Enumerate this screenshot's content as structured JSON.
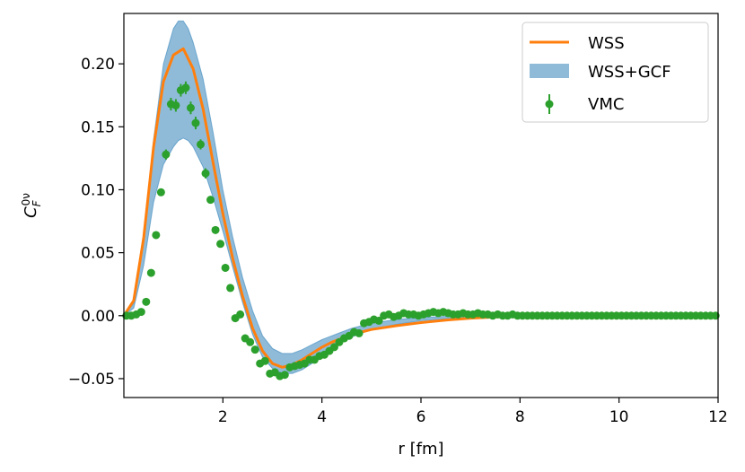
{
  "chart_data": {
    "type": "line",
    "xlabel": "r [fm]",
    "ylabel": "C",
    "ylabel_sub": "F",
    "ylabel_sup": "0ν",
    "xlim": [
      0,
      12
    ],
    "ylim": [
      -0.065,
      0.24
    ],
    "x_ticks": [
      2,
      4,
      6,
      8,
      10,
      12
    ],
    "x_tick_labels": [
      "2",
      "4",
      "6",
      "8",
      "10",
      "12"
    ],
    "y_ticks": [
      -0.05,
      0.0,
      0.05,
      0.1,
      0.15,
      0.2
    ],
    "y_tick_labels": [
      "−0.05",
      "0.00",
      "0.05",
      "0.10",
      "0.15",
      "0.20"
    ],
    "grid": false,
    "legend_position": "top-right",
    "legend": [
      "WSS",
      "WSS+GCF",
      "VMC"
    ],
    "colors": {
      "WSS": "#ff7f0e",
      "WSS+GCF": "#1f77b4",
      "VMC": "#2ca02c"
    },
    "wss": {
      "x": [
        0.0,
        0.2,
        0.4,
        0.6,
        0.8,
        1.0,
        1.2,
        1.4,
        1.6,
        1.8,
        2.0,
        2.2,
        2.4,
        2.6,
        2.8,
        3.0,
        3.2,
        3.4,
        3.6,
        3.8,
        4.0,
        4.2,
        4.4,
        4.6,
        4.8,
        5.0,
        5.5,
        6.0,
        6.5,
        7.0,
        7.5,
        8.0,
        8.5,
        9.0,
        10.0,
        11.0,
        12.0
      ],
      "y": [
        0.0,
        0.012,
        0.062,
        0.134,
        0.186,
        0.207,
        0.212,
        0.196,
        0.164,
        0.122,
        0.081,
        0.045,
        0.015,
        -0.01,
        -0.028,
        -0.038,
        -0.041,
        -0.039,
        -0.035,
        -0.03,
        -0.025,
        -0.021,
        -0.018,
        -0.015,
        -0.013,
        -0.011,
        -0.008,
        -0.0055,
        -0.0035,
        -0.002,
        -0.001,
        -0.0004,
        -0.0001,
        0.0,
        0.0,
        0.0,
        0.0
      ]
    },
    "band": {
      "x": [
        0.0,
        0.2,
        0.4,
        0.6,
        0.8,
        1.0,
        1.1,
        1.2,
        1.3,
        1.4,
        1.6,
        1.8,
        2.0,
        2.2,
        2.4,
        2.6,
        2.8,
        3.0,
        3.2,
        3.4,
        3.6,
        3.8,
        4.0,
        4.2,
        4.4,
        4.6,
        4.8,
        5.0,
        5.5,
        6.0,
        6.5,
        7.0,
        7.5,
        8.0,
        8.5,
        9.0,
        10.0,
        11.0,
        12.0
      ],
      "upper": [
        0.0,
        0.01,
        0.06,
        0.14,
        0.2,
        0.228,
        0.234,
        0.234,
        0.228,
        0.217,
        0.188,
        0.146,
        0.1,
        0.062,
        0.03,
        0.004,
        -0.016,
        -0.026,
        -0.03,
        -0.03,
        -0.027,
        -0.023,
        -0.019,
        -0.016,
        -0.013,
        -0.01,
        -0.008,
        -0.006,
        -0.003,
        -0.0015,
        -0.0005,
        0.0,
        0.0,
        0.0,
        0.0,
        0.0,
        0.0,
        0.0,
        0.0
      ],
      "lower": [
        0.0,
        0.006,
        0.04,
        0.09,
        0.12,
        0.134,
        0.139,
        0.141,
        0.139,
        0.134,
        0.118,
        0.094,
        0.067,
        0.038,
        0.01,
        -0.015,
        -0.033,
        -0.042,
        -0.046,
        -0.046,
        -0.043,
        -0.038,
        -0.032,
        -0.026,
        -0.021,
        -0.017,
        -0.014,
        -0.011,
        -0.007,
        -0.004,
        -0.0025,
        -0.0015,
        -0.001,
        -0.0005,
        0.0,
        0.0,
        0.0,
        0.0,
        0.0
      ]
    },
    "vmc": {
      "x": [
        0.05,
        0.15,
        0.25,
        0.35,
        0.45,
        0.55,
        0.65,
        0.75,
        0.85,
        0.95,
        1.05,
        1.15,
        1.25,
        1.35,
        1.45,
        1.55,
        1.65,
        1.75,
        1.85,
        1.95,
        2.05,
        2.15,
        2.25,
        2.35,
        2.45,
        2.55,
        2.65,
        2.75,
        2.85,
        2.95,
        3.05,
        3.15,
        3.25,
        3.35,
        3.45,
        3.55,
        3.65,
        3.75,
        3.85,
        3.95,
        4.05,
        4.15,
        4.25,
        4.35,
        4.45,
        4.55,
        4.65,
        4.75,
        4.85,
        4.95,
        5.05,
        5.15,
        5.25,
        5.35,
        5.45,
        5.55,
        5.65,
        5.75,
        5.85,
        5.95,
        6.05,
        6.15,
        6.25,
        6.35,
        6.45,
        6.55,
        6.65,
        6.75,
        6.85,
        6.95,
        7.05,
        7.15,
        7.25,
        7.35,
        7.45,
        7.55,
        7.65,
        7.75,
        7.85,
        7.95,
        8.05,
        8.15,
        8.25,
        8.35,
        8.45,
        8.55,
        8.65,
        8.75,
        8.85,
        8.95,
        9.05,
        9.15,
        9.25,
        9.35,
        9.45,
        9.55,
        9.65,
        9.75,
        9.85,
        9.95,
        10.05,
        10.15,
        10.25,
        10.35,
        10.45,
        10.55,
        10.65,
        10.75,
        10.85,
        10.95,
        11.05,
        11.15,
        11.25,
        11.35,
        11.45,
        11.55,
        11.65,
        11.75,
        11.85,
        11.95
      ],
      "y": [
        0.0,
        0.0,
        0.001,
        0.003,
        0.011,
        0.034,
        0.064,
        0.098,
        0.128,
        0.168,
        0.167,
        0.179,
        0.181,
        0.165,
        0.153,
        0.136,
        0.113,
        0.092,
        0.068,
        0.057,
        0.038,
        0.022,
        -0.002,
        0.001,
        -0.018,
        -0.021,
        -0.027,
        -0.038,
        -0.036,
        -0.046,
        -0.045,
        -0.048,
        -0.047,
        -0.041,
        -0.04,
        -0.039,
        -0.038,
        -0.035,
        -0.035,
        -0.032,
        -0.031,
        -0.028,
        -0.025,
        -0.021,
        -0.018,
        -0.016,
        -0.013,
        -0.014,
        -0.006,
        -0.005,
        -0.003,
        -0.004,
        0.0,
        0.001,
        -0.001,
        0.0,
        0.002,
        0.001,
        0.001,
        0.0,
        0.001,
        0.002,
        0.003,
        0.002,
        0.003,
        0.002,
        0.001,
        0.001,
        0.002,
        0.001,
        0.001,
        0.002,
        0.001,
        0.001,
        0.0,
        0.001,
        0.0,
        0.0,
        0.001,
        0.0,
        0.0,
        0.0,
        0.0,
        0.0,
        0.0,
        0.0,
        0.0,
        0.0,
        0.0,
        0.0,
        0.0,
        0.0,
        0.0,
        0.0,
        0.0,
        0.0,
        0.0,
        0.0,
        0.0,
        0.0,
        0.0,
        0.0,
        0.0,
        0.0,
        0.0,
        0.0,
        0.0,
        0.0,
        0.0,
        0.0,
        0.0,
        0.0,
        0.0,
        0.0,
        0.0,
        0.0,
        0.0,
        0.0,
        0.0,
        0.0
      ],
      "err": [
        0.0,
        0.0,
        0.001,
        0.001,
        0.002,
        0.002,
        0.002,
        0.003,
        0.004,
        0.005,
        0.005,
        0.005,
        0.005,
        0.005,
        0.005,
        0.004,
        0.004,
        0.003,
        0.003,
        0.003,
        0.003,
        0.002,
        0.002,
        0.002,
        0.002,
        0.002,
        0.002,
        0.002,
        0.002,
        0.002,
        0.002,
        0.002,
        0.002,
        0.002,
        0.002,
        0.002,
        0.002,
        0.002,
        0.002,
        0.002,
        0.002,
        0.002,
        0.002,
        0.002,
        0.002,
        0.002,
        0.002,
        0.002,
        0.002,
        0.002,
        0.002,
        0.002,
        0.002,
        0.002,
        0.002,
        0.002,
        0.002,
        0.002,
        0.002,
        0.002,
        0.002,
        0.002,
        0.002,
        0.002,
        0.002,
        0.001,
        0.001,
        0.001,
        0.001,
        0.001,
        0.001,
        0.001,
        0.001,
        0.001,
        0.001,
        0.001,
        0.001,
        0.001,
        0.001,
        0.001,
        0.001,
        0.001,
        0.001,
        0.001,
        0.001,
        0.001,
        0.001,
        0.001,
        0.001,
        0.001,
        0.001,
        0.001,
        0.001,
        0.001,
        0.001,
        0.001,
        0.001,
        0.001,
        0.001,
        0.001,
        0.001,
        0.001,
        0.001,
        0.001,
        0.001,
        0.001,
        0.001,
        0.001,
        0.001,
        0.001,
        0.001,
        0.001,
        0.001,
        0.001,
        0.001,
        0.001,
        0.001,
        0.001,
        0.001,
        0.001
      ]
    }
  }
}
